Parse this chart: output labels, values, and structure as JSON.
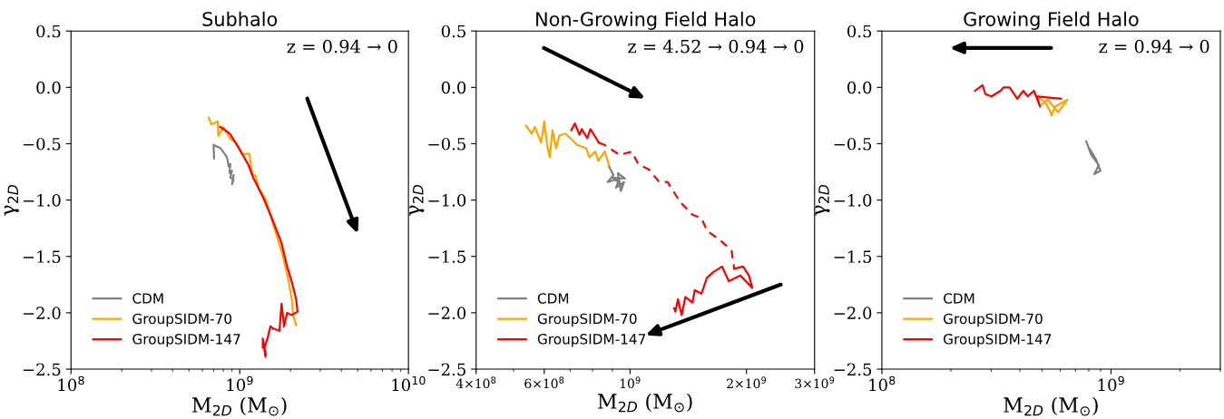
{
  "chart_data": [
    {
      "type": "line",
      "title": "Subhalo",
      "xlabel": "M$_{2D}$ (M$_{⊙}$)",
      "ylabel": "γ$_{2D}$",
      "annotations": [
        "z = 0.94 → 0"
      ],
      "log": "x",
      "legend": "bottom left",
      "grid": false,
      "xlim": [
        100000000.0,
        10000000000.0
      ],
      "xticks": [
        {
          "value": 100000000.0,
          "label": "10$^{8}$"
        },
        {
          "value": 1000000000.0,
          "label": "10$^{9}$"
        },
        {
          "value": 10000000000.0,
          "label": "10$^{10}$"
        },
        {
          "value": 200000000.0,
          "label": null
        },
        {
          "value": 300000000.0,
          "label": null
        },
        {
          "value": 400000000.0,
          "label": null
        },
        {
          "value": 500000000.0,
          "label": null
        },
        {
          "value": 600000000.0,
          "label": null
        },
        {
          "value": 700000000.0,
          "label": null
        },
        {
          "value": 800000000.0,
          "label": null
        },
        {
          "value": 900000000.0,
          "label": null
        },
        {
          "value": 2000000000.0,
          "label": null
        },
        {
          "value": 3000000000.0,
          "label": null
        },
        {
          "value": 4000000000.0,
          "label": null
        },
        {
          "value": 5000000000.0,
          "label": null
        },
        {
          "value": 6000000000.0,
          "label": null
        },
        {
          "value": 7000000000.0,
          "label": null
        },
        {
          "value": 8000000000.0,
          "label": null
        },
        {
          "value": 9000000000.0,
          "label": null
        }
      ],
      "ylim": [
        -2.5,
        0.5
      ],
      "yticks": [
        {
          "value": -2.5,
          "label": "−2.5"
        },
        {
          "value": -2,
          "label": "−2.0"
        },
        {
          "value": -1.5,
          "label": "−1.5"
        },
        {
          "value": -1,
          "label": "−1.0"
        },
        {
          "value": -0.5,
          "label": "−0.5"
        },
        {
          "value": 0,
          "label": "0.0"
        },
        {
          "value": 0.5,
          "label": "0.5"
        }
      ],
      "series": [
        {
          "name": "CDM",
          "color": "#808080",
          "x": [
            705000000.0,
            700000000.0,
            770000000.0,
            840000000.0,
            860000000.0,
            880000000.0,
            870000000.0,
            900000000.0,
            880000000.0,
            920000000.0,
            900000000.0,
            920000000.0
          ],
          "values": [
            -0.63,
            -0.51,
            -0.54,
            -0.62,
            -0.7,
            -0.68,
            -0.76,
            -0.74,
            -0.8,
            -0.82,
            -0.86,
            -0.78
          ]
        },
        {
          "name": "GroupSIDM-70",
          "color": "#ffa500",
          "x": [
            655000000.0,
            682000000.0,
            740000000.0,
            746000000.0,
            800000000.0,
            873000000.0,
            948000000.0,
            1030000000.0,
            1140000000.0,
            1190000000.0,
            1240000000.0,
            1290000000.0,
            1430000000.0,
            1620000000.0,
            1790000000.0,
            1950000000.0,
            2050000000.0,
            2070000000.0,
            2160000000.0
          ],
          "values": [
            -0.27,
            -0.33,
            -0.3,
            -0.43,
            -0.35,
            -0.45,
            -0.49,
            -0.59,
            -0.59,
            -0.78,
            -0.78,
            -0.89,
            -1.0,
            -1.27,
            -1.48,
            -1.72,
            -1.91,
            -2.02,
            -2.11
          ]
        },
        {
          "name": "GroupSIDM-147",
          "color": "#ff0000",
          "x": [
            765000000.0,
            820000000.0,
            873000000.0,
            990000000.0,
            1120000000.0,
            1210000000.0,
            1370000000.0,
            1550000000.0,
            1760000000.0,
            1910000000.0,
            2030000000.0,
            2160000000.0,
            2200000000.0,
            2030000000.0,
            1910000000.0,
            1830000000.0,
            1770000000.0,
            1720000000.0,
            1580000000.0,
            1520000000.0,
            1460000000.0,
            1400000000.0,
            1430000000.0,
            1420000000.0,
            1370000000.0,
            1370000000.0
          ],
          "values": [
            -0.35,
            -0.38,
            -0.41,
            -0.54,
            -0.68,
            -0.81,
            -0.97,
            -1.16,
            -1.37,
            -1.59,
            -1.72,
            -1.88,
            -1.99,
            -2.02,
            -2.0,
            -2.12,
            -1.92,
            -2.16,
            -2.14,
            -2.12,
            -2.23,
            -2.31,
            -2.37,
            -2.39,
            -2.23,
            -2.31
          ]
        }
      ]
    },
    {
      "type": "line",
      "title": "Non-Growing Field Halo",
      "xlabel": "M$_{2D}$ (M$_{⊙}$)",
      "ylabel": "γ$_{2D}$",
      "annotations": [
        "z = 4.52 → 0.94 → 0"
      ],
      "log": "x",
      "legend": "bottom left",
      "grid": false,
      "xlim": [
        400000000.0,
        3000000000.0
      ],
      "xticks": [
        {
          "value": 400000000.0,
          "label": "4×10$^{8}$"
        },
        {
          "value": 600000000.0,
          "label": "6×10$^{8}$"
        },
        {
          "value": 1000000000.0,
          "label": "10$^{9}$"
        },
        {
          "value": 2000000000.0,
          "label": "2×10$^{9}$"
        },
        {
          "value": 3000000000.0,
          "label": "3×10$^{9}$"
        },
        {
          "value": 500000000.0,
          "label": null
        },
        {
          "value": 700000000.0,
          "label": null
        },
        {
          "value": 800000000.0,
          "label": null
        },
        {
          "value": 900000000.0,
          "label": null
        }
      ],
      "ylim": [
        -2.5,
        0.5
      ],
      "yticks": [
        {
          "value": -2.5,
          "label": "−2.5"
        },
        {
          "value": -2,
          "label": "−2.0"
        },
        {
          "value": -1.5,
          "label": "−1.5"
        },
        {
          "value": -1,
          "label": "−1.0"
        },
        {
          "value": -0.5,
          "label": "−0.5"
        },
        {
          "value": 0,
          "label": "0.0"
        },
        {
          "value": 0.5,
          "label": "0.5"
        }
      ],
      "series": [
        {
          "name": "CDM",
          "color": "#808080",
          "x": [
            882000000.0,
            906000000.0,
            875000000.0,
            940000000.0,
            920000000.0,
            965000000.0,
            947000000.0,
            930000000.0,
            970000000.0,
            900000000.0,
            950000000.0
          ],
          "values": [
            -0.7,
            -0.78,
            -0.84,
            -0.81,
            -0.89,
            -0.84,
            -0.92,
            -0.76,
            -0.81,
            -0.8,
            -0.86
          ]
        },
        {
          "name": "GroupSIDM-70",
          "color": "#ffa500",
          "x": [
            538000000.0,
            557000000.0,
            567000000.0,
            589000000.0,
            600000000.0,
            610000000.0,
            620000000.0,
            630000000.0,
            644000000.0,
            656000000.0,
            680000000.0,
            705000000.0,
            730000000.0,
            770000000.0,
            785000000.0,
            813000000.0,
            828000000.0,
            860000000.0,
            882000000.0
          ],
          "values": [
            -0.34,
            -0.41,
            -0.35,
            -0.49,
            -0.3,
            -0.51,
            -0.62,
            -0.38,
            -0.54,
            -0.43,
            -0.41,
            -0.46,
            -0.51,
            -0.54,
            -0.62,
            -0.57,
            -0.65,
            -0.57,
            -0.69
          ]
        },
        {
          "name": "GroupSIDM-147",
          "color": "#ff0000",
          "x": [
            705000000.0,
            720000000.0,
            740000000.0,
            750000000.0,
            775000000.0,
            790000000.0,
            810000000.0,
            830000000.0
          ],
          "values": [
            -0.38,
            -0.32,
            -0.42,
            -0.37,
            -0.45,
            -0.37,
            -0.43,
            -0.49
          ]
        },
        {
          "color": "#ff0000",
          "line_style": "dashed",
          "x": [
            830000000.0,
            859000000.0,
            940000000.0,
            1010000000.0,
            1050000000.0,
            1120000000.0,
            1190000000.0,
            1250000000.0,
            1350000000.0,
            1450000000.0,
            1530000000.0,
            1580000000.0,
            1730000000.0,
            1830000000.0,
            1860000000.0
          ],
          "values": [
            -0.49,
            -0.51,
            -0.6,
            -0.57,
            -0.68,
            -0.73,
            -0.84,
            -0.84,
            -1.02,
            -1.13,
            -1.16,
            -1.27,
            -1.37,
            -1.45,
            -1.61
          ]
        },
        {
          "color": "#ff0000",
          "x": [
            1860000000.0,
            1960000000.0,
            2030000000.0,
            2070000000.0,
            1930000000.0,
            1800000000.0,
            1730000000.0,
            1640000000.0,
            1580000000.0,
            1530000000.0,
            1470000000.0,
            1450000000.0,
            1390000000.0,
            1360000000.0,
            1330000000.0,
            1310000000.0,
            1300000000.0
          ],
          "values": [
            -1.61,
            -1.59,
            -1.67,
            -1.78,
            -1.67,
            -1.72,
            -1.59,
            -1.64,
            -1.69,
            -1.83,
            -1.8,
            -1.91,
            -1.86,
            -2.02,
            -1.88,
            -1.99,
            -1.96
          ]
        }
      ]
    },
    {
      "type": "line",
      "title": "Growing Field Halo",
      "xlabel": "M$_{2D}$ (M$_{⊙}$)",
      "ylabel": "γ$_{2D}$",
      "annotations": [
        "z = 0.94 → 0"
      ],
      "log": "x",
      "legend": "bottom left",
      "grid": false,
      "xlim": [
        100000000.0,
        3000000000.0
      ],
      "xticks": [
        {
          "value": 100000000.0,
          "label": "10$^{8}$"
        },
        {
          "value": 1000000000.0,
          "label": "10$^{9}$"
        },
        {
          "value": 200000000.0,
          "label": null
        },
        {
          "value": 300000000.0,
          "label": null
        },
        {
          "value": 400000000.0,
          "label": null
        },
        {
          "value": 500000000.0,
          "label": null
        },
        {
          "value": 600000000.0,
          "label": null
        },
        {
          "value": 700000000.0,
          "label": null
        },
        {
          "value": 800000000.0,
          "label": null
        },
        {
          "value": 900000000.0,
          "label": null
        },
        {
          "value": 2000000000.0,
          "label": null
        },
        {
          "value": 3000000000.0,
          "label": null
        }
      ],
      "ylim": [
        -2.5,
        0.5
      ],
      "yticks": [
        {
          "value": -2.5,
          "label": "−2.5"
        },
        {
          "value": -2,
          "label": "−2.0"
        },
        {
          "value": -1.5,
          "label": "−1.5"
        },
        {
          "value": -1,
          "label": "−1.0"
        },
        {
          "value": -0.5,
          "label": "−0.5"
        },
        {
          "value": 0,
          "label": "0.0"
        },
        {
          "value": 0.5,
          "label": "0.5"
        }
      ],
      "series": [
        {
          "name": "CDM",
          "color": "#808080",
          "x": [
            780000000.0,
            820000000.0,
            885000000.0,
            845000000.0,
            900000000.0,
            860000000.0,
            810000000.0
          ],
          "values": [
            -0.48,
            -0.6,
            -0.69,
            -0.77,
            -0.74,
            -0.64,
            -0.55
          ]
        },
        {
          "name": "GroupSIDM-70",
          "color": "#ffa500",
          "x": [
            480000000.0,
            520000000.0,
            545000000.0,
            550000000.0,
            570000000.0,
            644000000.0,
            588000000.0,
            530000000.0,
            500000000.0
          ],
          "values": [
            -0.08,
            -0.14,
            -0.22,
            -0.25,
            -0.17,
            -0.11,
            -0.22,
            -0.11,
            -0.15
          ]
        },
        {
          "name": "GroupSIDM-147",
          "color": "#ff0000",
          "x": [
            255000000.0,
            275000000.0,
            283000000.0,
            301000000.0,
            330000000.0,
            340000000.0,
            361000000.0,
            390000000.0,
            414000000.0,
            433000000.0,
            461000000.0,
            490000000.0,
            475000000.0,
            605000000.0
          ],
          "values": [
            -0.03,
            0.02,
            -0.06,
            -0.08,
            -0.03,
            0.0,
            0.0,
            -0.1,
            -0.03,
            -0.08,
            -0.03,
            -0.17,
            -0.08,
            -0.1
          ]
        }
      ]
    }
  ]
}
